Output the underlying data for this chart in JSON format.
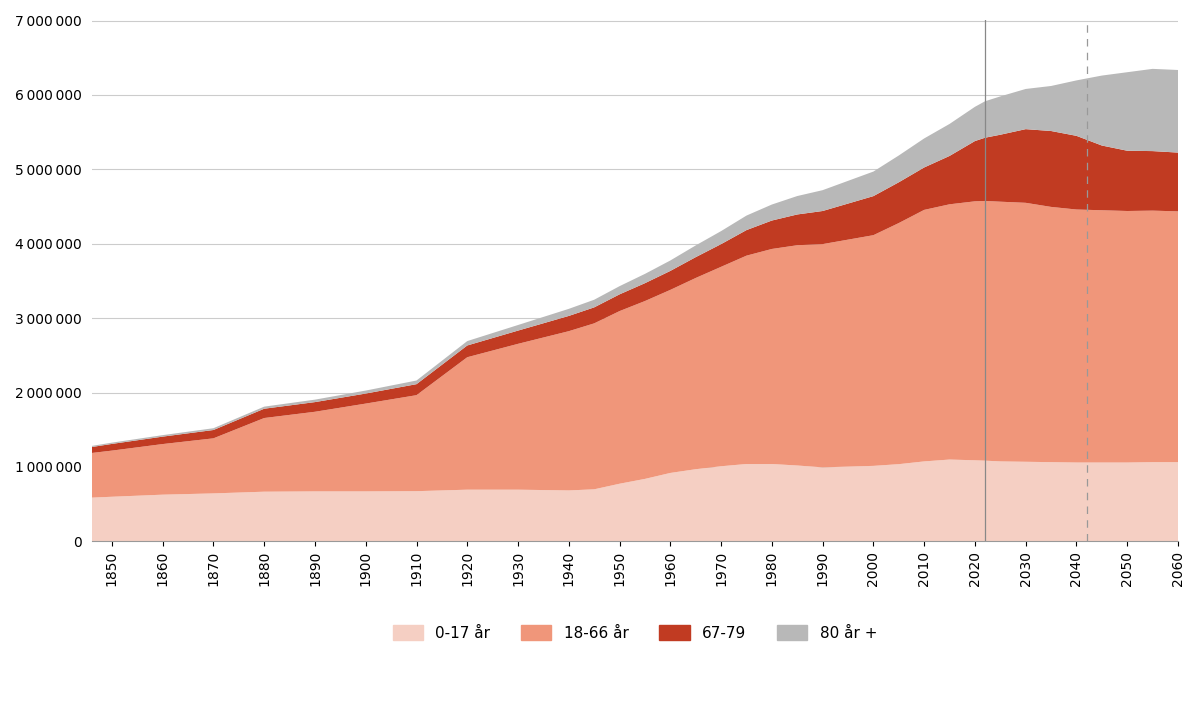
{
  "colors": {
    "age_0_17": "#f5cfc3",
    "age_18_66": "#f0967a",
    "age_67_79": "#c13b22",
    "age_80_plus": "#b8b8b8"
  },
  "vline_year": 2022,
  "dashed_line_year": 2042,
  "ylim": [
    0,
    7000000
  ],
  "yticks": [
    0,
    1000000,
    2000000,
    3000000,
    4000000,
    5000000,
    6000000,
    7000000
  ],
  "ytick_labels": [
    "0",
    "1 000 000",
    "2 000 000",
    "3 000 000",
    "4 000 000",
    "5 000 000",
    "6 000 000",
    "7 000 000"
  ],
  "xticks": [
    1850,
    1860,
    1870,
    1880,
    1890,
    1900,
    1910,
    1920,
    1930,
    1940,
    1950,
    1960,
    1970,
    1980,
    1990,
    2000,
    2010,
    2020,
    2030,
    2040,
    2050,
    2060
  ],
  "legend_labels": [
    "0-17 år",
    "18-66 år",
    "67-79",
    "80 år +"
  ],
  "background_color": "#ffffff",
  "grid_color": "#cccccc"
}
